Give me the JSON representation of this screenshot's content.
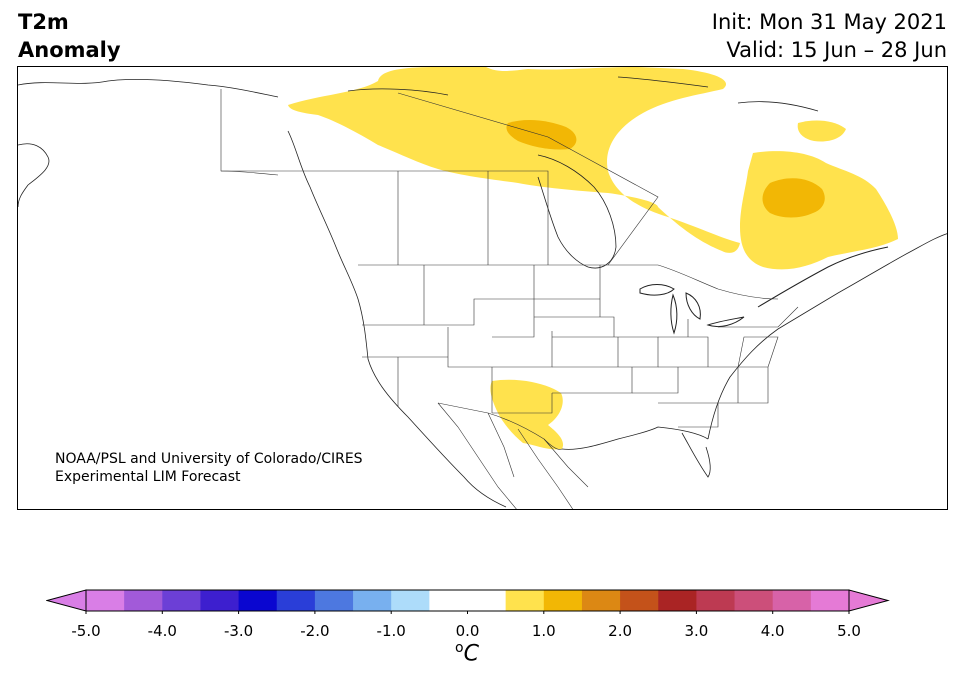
{
  "title": {
    "line1": "T2m",
    "line2": "Anomaly"
  },
  "info": {
    "init": "Init: Mon 31 May 2021",
    "valid": "Valid: 15 Jun – 28 Jun"
  },
  "credit": {
    "line1": "NOAA/PSL and University of Colorado/CIRES",
    "line2": "Experimental LIM Forecast"
  },
  "colorbar": {
    "unit_base": "C",
    "unit_sup": "o",
    "ticks": [
      "-5.0",
      "-4.0",
      "-3.0",
      "-2.0",
      "-1.0",
      "0.0",
      "1.0",
      "2.0",
      "3.0",
      "4.0",
      "5.0"
    ],
    "colors": [
      "#d97ee6",
      "#a25ad9",
      "#6c3fd6",
      "#3d1fcf",
      "#0a06d0",
      "#2a3ed8",
      "#4d78e0",
      "#78b0ef",
      "#addcfa",
      "#ffffff",
      "#ffffff",
      "#ffe24d",
      "#f2b705",
      "#dc8814",
      "#c4521a",
      "#aa2424",
      "#bd3a52",
      "#cc4f7a",
      "#d762a8",
      "#e57ad6"
    ],
    "extend_min_color": "#d97ee6",
    "extend_max_color": "#e57ad6"
  },
  "anomaly_colors": {
    "light": "#ffe24d",
    "medium": "#f2b705"
  }
}
